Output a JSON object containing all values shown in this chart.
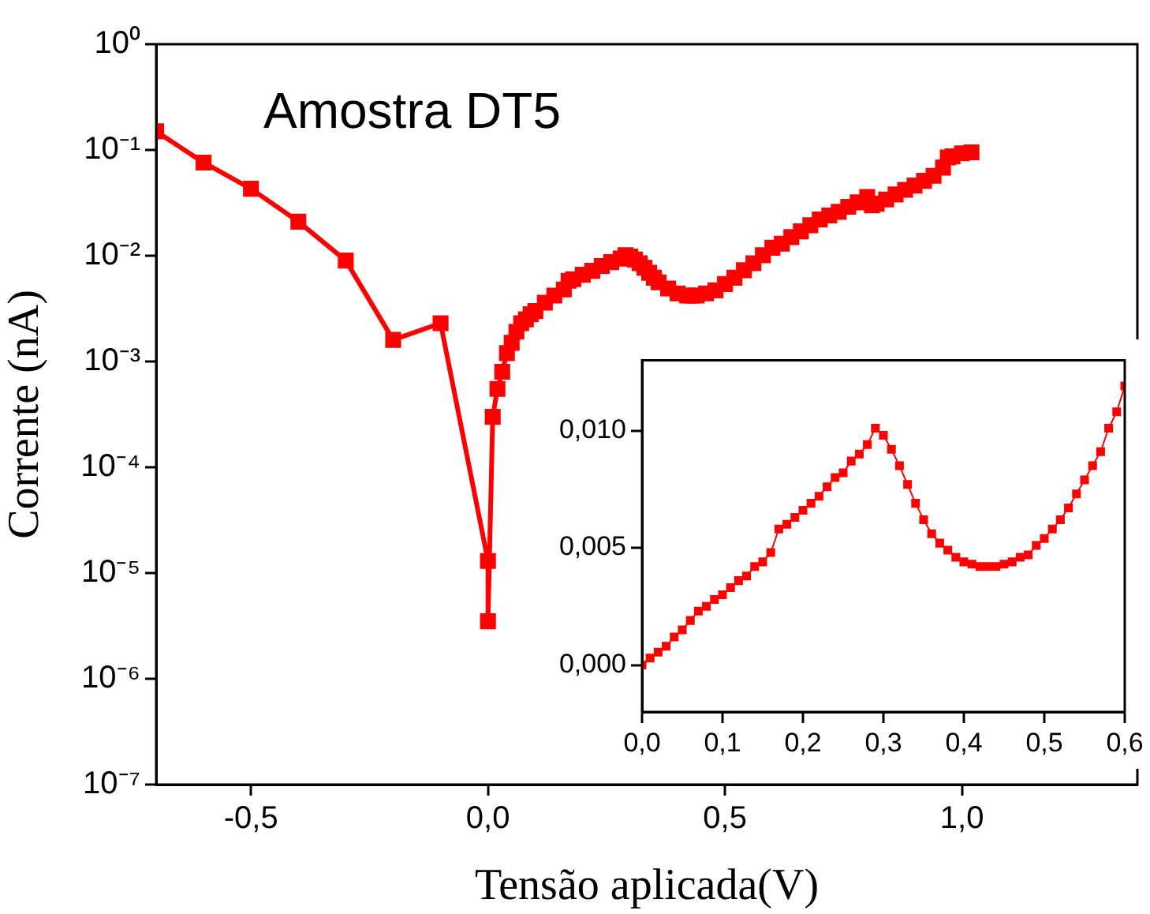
{
  "chart_data": [
    {
      "type": "line",
      "xlabel": "Tensão aplicada(V)",
      "ylabel": "Corrente (nA)",
      "annotations": [
        "Amostra DT5"
      ],
      "log": "y",
      "marker": "square",
      "line_style": "solid",
      "xlim": [
        -0.7,
        1.37
      ],
      "xticks": [
        {
          "value": -0.5,
          "label": "-0,5"
        },
        {
          "value": 0,
          "label": "0,0"
        },
        {
          "value": 0.5,
          "label": "0,5"
        },
        {
          "value": 1.0,
          "label": "1,0"
        }
      ],
      "ylim": [
        1e-07,
        1
      ],
      "yticks": [
        {
          "value": 1e-07,
          "label": "10⁻⁷"
        },
        {
          "value": 1e-06,
          "label": "10⁻⁶"
        },
        {
          "value": 1e-05,
          "label": "10⁻⁵"
        },
        {
          "value": 0.0001,
          "label": "10⁻⁴"
        },
        {
          "value": 0.001,
          "label": "10⁻³"
        },
        {
          "value": 0.01,
          "label": "10⁻²"
        },
        {
          "value": 0.1,
          "label": "10⁻¹"
        },
        {
          "value": 1,
          "label": "10⁰"
        }
      ],
      "series": [
        {
          "color": "#ff0000",
          "x": [
            -0.7,
            -0.6,
            -0.5,
            -0.4,
            -0.3,
            -0.2,
            -0.1,
            0.0,
            0.0,
            0.01,
            0.02,
            0.03,
            0.04,
            0.05,
            0.06,
            0.07,
            0.08,
            0.09,
            0.1,
            0.12,
            0.14,
            0.16,
            0.17,
            0.18,
            0.2,
            0.22,
            0.24,
            0.26,
            0.28,
            0.29,
            0.3,
            0.31,
            0.32,
            0.33,
            0.34,
            0.35,
            0.36,
            0.38,
            0.4,
            0.42,
            0.43,
            0.44,
            0.46,
            0.48,
            0.5,
            0.52,
            0.54,
            0.56,
            0.58,
            0.6,
            0.62,
            0.64,
            0.66,
            0.68,
            0.7,
            0.72,
            0.74,
            0.76,
            0.78,
            0.8,
            0.81,
            0.82,
            0.84,
            0.86,
            0.88,
            0.9,
            0.92,
            0.94,
            0.96,
            0.97,
            0.98,
            1.0,
            1.02
          ],
          "values": [
            0.15,
            0.076,
            0.043,
            0.021,
            0.009,
            0.0016,
            0.0023,
            1.3e-05,
            3.5e-06,
            0.0003,
            0.00055,
            0.0008,
            0.0012,
            0.0015,
            0.0019,
            0.0023,
            0.0025,
            0.0028,
            0.003,
            0.0036,
            0.0042,
            0.0048,
            0.0058,
            0.006,
            0.0066,
            0.0072,
            0.008,
            0.0087,
            0.0094,
            0.0101,
            0.0098,
            0.0092,
            0.0085,
            0.0077,
            0.0069,
            0.0062,
            0.0056,
            0.0049,
            0.0044,
            0.0042,
            0.0042,
            0.0042,
            0.0044,
            0.0047,
            0.0054,
            0.0062,
            0.0073,
            0.0085,
            0.0101,
            0.0119,
            0.013,
            0.015,
            0.017,
            0.0194,
            0.022,
            0.024,
            0.026,
            0.029,
            0.032,
            0.036,
            0.03,
            0.031,
            0.034,
            0.038,
            0.042,
            0.046,
            0.051,
            0.057,
            0.068,
            0.085,
            0.087,
            0.093,
            0.095
          ]
        }
      ]
    },
    {
      "type": "line",
      "marker": "square",
      "line_style": "solid",
      "xlim": [
        0,
        0.6
      ],
      "xticks": [
        {
          "value": 0,
          "label": "0,0"
        },
        {
          "value": 0.1,
          "label": "0,1"
        },
        {
          "value": 0.2,
          "label": "0,2"
        },
        {
          "value": 0.3,
          "label": "0,3"
        },
        {
          "value": 0.4,
          "label": "0,4"
        },
        {
          "value": 0.5,
          "label": "0,5"
        },
        {
          "value": 0.6,
          "label": "0,6"
        }
      ],
      "ylim": [
        -0.002,
        0.013
      ],
      "yticks": [
        {
          "value": 0,
          "label": "0,000"
        },
        {
          "value": 0.005,
          "label": "0,005"
        },
        {
          "value": 0.01,
          "label": "0,010"
        }
      ],
      "series": [
        {
          "color": "#ff0000",
          "x": [
            0,
            0.01,
            0.02,
            0.03,
            0.04,
            0.05,
            0.06,
            0.07,
            0.08,
            0.09,
            0.1,
            0.11,
            0.12,
            0.13,
            0.14,
            0.15,
            0.16,
            0.17,
            0.18,
            0.19,
            0.2,
            0.21,
            0.22,
            0.23,
            0.24,
            0.25,
            0.26,
            0.27,
            0.28,
            0.29,
            0.3,
            0.31,
            0.32,
            0.33,
            0.34,
            0.35,
            0.36,
            0.37,
            0.38,
            0.39,
            0.4,
            0.41,
            0.42,
            0.43,
            0.44,
            0.45,
            0.46,
            0.47,
            0.48,
            0.49,
            0.5,
            0.51,
            0.52,
            0.53,
            0.54,
            0.55,
            0.56,
            0.57,
            0.58,
            0.59,
            0.6
          ],
          "values": [
            0,
            0.0003,
            0.00055,
            0.0008,
            0.0012,
            0.0015,
            0.0019,
            0.0023,
            0.0025,
            0.0028,
            0.003,
            0.0033,
            0.0036,
            0.0038,
            0.0042,
            0.0044,
            0.0048,
            0.0058,
            0.006,
            0.0063,
            0.0066,
            0.0069,
            0.0072,
            0.0076,
            0.008,
            0.0082,
            0.0087,
            0.009,
            0.0094,
            0.0101,
            0.0098,
            0.0092,
            0.0085,
            0.0077,
            0.0069,
            0.0062,
            0.0056,
            0.0052,
            0.0049,
            0.0046,
            0.0044,
            0.0043,
            0.0042,
            0.0042,
            0.0042,
            0.0043,
            0.0044,
            0.0046,
            0.0047,
            0.0051,
            0.0054,
            0.0058,
            0.0062,
            0.0067,
            0.0073,
            0.0079,
            0.0085,
            0.0091,
            0.0101,
            0.0108,
            0.0119
          ]
        }
      ]
    }
  ]
}
